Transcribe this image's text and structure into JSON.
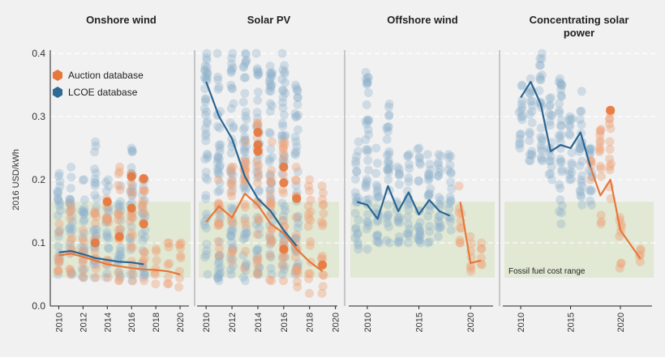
{
  "chart_data": {
    "type": "scatter",
    "ylabel": "2016 USD/kWh",
    "ylim": [
      0,
      0.4
    ],
    "yticks": [
      "0.0",
      "0.1",
      "0.2",
      "0.3",
      "0.4"
    ],
    "fossil_range": {
      "label": "Fossil fuel cost range",
      "low": 0.045,
      "high": 0.165,
      "color": "#dfe7d0"
    },
    "legend": [
      {
        "label": "Auction database",
        "color": "#e8773a"
      },
      {
        "label": "LCOE database",
        "color": "#2f6a94"
      }
    ],
    "colors": {
      "lcoe_dot": "#8eb1cc",
      "auction_dot": "#eda277",
      "lcoe_line": "#2a6592",
      "auction_line": "#e8773a"
    },
    "panels": [
      {
        "title": "Onshore wind",
        "xmin": 2009.3,
        "xmax": 2021.0,
        "xticks": [
          "2010",
          "2012",
          "2014",
          "2016",
          "2018",
          "2020"
        ],
        "lcoe_line": [
          [
            2010,
            0.085
          ],
          [
            2011,
            0.087
          ],
          [
            2012,
            0.082
          ],
          [
            2013,
            0.076
          ],
          [
            2014,
            0.073
          ],
          [
            2015,
            0.07
          ],
          [
            2016,
            0.069
          ],
          [
            2017,
            0.066
          ]
        ],
        "auction_line": [
          [
            2010,
            0.08
          ],
          [
            2011,
            0.083
          ],
          [
            2012,
            0.078
          ],
          [
            2013,
            0.072
          ],
          [
            2014,
            0.066
          ],
          [
            2015,
            0.063
          ],
          [
            2016,
            0.06
          ],
          [
            2017,
            0.058
          ],
          [
            2018,
            0.057
          ],
          [
            2019,
            0.055
          ],
          [
            2020,
            0.05
          ]
        ],
        "lcoe_scatter": [
          [
            2010,
            0.05,
            0.21
          ],
          [
            2011,
            0.05,
            0.22
          ],
          [
            2012,
            0.045,
            0.2
          ],
          [
            2013,
            0.045,
            0.26
          ],
          [
            2014,
            0.045,
            0.2
          ],
          [
            2015,
            0.045,
            0.19
          ],
          [
            2016,
            0.04,
            0.25
          ],
          [
            2017,
            0.045,
            0.2
          ]
        ],
        "auction_scatter": [
          [
            2010,
            0.055,
            0.13
          ],
          [
            2011,
            0.05,
            0.16
          ],
          [
            2012,
            0.045,
            0.12
          ],
          [
            2013,
            0.045,
            0.15
          ],
          [
            2014,
            0.045,
            0.17
          ],
          [
            2015,
            0.04,
            0.22
          ],
          [
            2016,
            0.04,
            0.21
          ],
          [
            2017,
            0.04,
            0.2
          ],
          [
            2018,
            0.035,
            0.09
          ],
          [
            2019,
            0.035,
            0.1
          ],
          [
            2020,
            0.03,
            0.1
          ]
        ],
        "auction_highlights": [
          [
            2016,
            0.205
          ],
          [
            2017,
            0.202
          ],
          [
            2014,
            0.165
          ],
          [
            2016,
            0.155
          ],
          [
            2017,
            0.13
          ],
          [
            2013,
            0.1
          ],
          [
            2015,
            0.11
          ]
        ]
      },
      {
        "title": "Solar PV",
        "xmin": 2009.3,
        "xmax": 2020.4,
        "xticks": [
          "2010",
          "2012",
          "2014",
          "2016",
          "2018",
          "2020"
        ],
        "lcoe_line": [
          [
            2010,
            0.355
          ],
          [
            2011,
            0.3
          ],
          [
            2012,
            0.265
          ],
          [
            2013,
            0.205
          ],
          [
            2014,
            0.17
          ],
          [
            2015,
            0.15
          ],
          [
            2016,
            0.12
          ],
          [
            2017,
            0.095
          ]
        ],
        "auction_line": [
          [
            2010,
            0.133
          ],
          [
            2011,
            0.158
          ],
          [
            2012,
            0.14
          ],
          [
            2013,
            0.178
          ],
          [
            2014,
            0.16
          ],
          [
            2015,
            0.13
          ],
          [
            2016,
            0.115
          ],
          [
            2017,
            0.09
          ],
          [
            2018,
            0.07
          ],
          [
            2019,
            0.055
          ]
        ],
        "lcoe_scatter": [
          [
            2010,
            0.05,
            0.4
          ],
          [
            2011,
            0.04,
            0.4
          ],
          [
            2012,
            0.05,
            0.4
          ],
          [
            2013,
            0.04,
            0.4
          ],
          [
            2014,
            0.05,
            0.4
          ],
          [
            2015,
            0.05,
            0.38
          ],
          [
            2016,
            0.05,
            0.4
          ],
          [
            2017,
            0.05,
            0.35
          ]
        ],
        "auction_scatter": [
          [
            2011,
            0.08,
            0.2
          ],
          [
            2012,
            0.07,
            0.22
          ],
          [
            2013,
            0.06,
            0.26
          ],
          [
            2014,
            0.05,
            0.29
          ],
          [
            2015,
            0.04,
            0.26
          ],
          [
            2016,
            0.04,
            0.26
          ],
          [
            2017,
            0.03,
            0.22
          ],
          [
            2018,
            0.02,
            0.2
          ],
          [
            2019,
            0.02,
            0.19
          ]
        ],
        "auction_highlights": [
          [
            2014,
            0.255
          ],
          [
            2014,
            0.275
          ],
          [
            2014,
            0.245
          ],
          [
            2016,
            0.22
          ],
          [
            2016,
            0.195
          ],
          [
            2017,
            0.17
          ],
          [
            2016,
            0.09
          ],
          [
            2019,
            0.065
          ]
        ]
      },
      {
        "title": "Offshore wind",
        "xmin": 2008.2,
        "xmax": 2022.5,
        "xticks": [
          "2010",
          "2015",
          "2020"
        ],
        "lcoe_line": [
          [
            2009,
            0.165
          ],
          [
            2010,
            0.16
          ],
          [
            2011,
            0.138
          ],
          [
            2012,
            0.19
          ],
          [
            2013,
            0.15
          ],
          [
            2014,
            0.18
          ],
          [
            2015,
            0.145
          ],
          [
            2016,
            0.168
          ],
          [
            2017,
            0.15
          ],
          [
            2018,
            0.143
          ]
        ],
        "auction_line": [
          [
            2019,
            0.165
          ],
          [
            2020,
            0.068
          ],
          [
            2021,
            0.072
          ]
        ],
        "lcoe_scatter": [
          [
            2009,
            0.09,
            0.26
          ],
          [
            2010,
            0.09,
            0.37
          ],
          [
            2011,
            0.1,
            0.25
          ],
          [
            2012,
            0.1,
            0.32
          ],
          [
            2013,
            0.1,
            0.22
          ],
          [
            2014,
            0.1,
            0.24
          ],
          [
            2015,
            0.1,
            0.25
          ],
          [
            2016,
            0.1,
            0.24
          ],
          [
            2017,
            0.11,
            0.24
          ],
          [
            2018,
            0.12,
            0.24
          ]
        ],
        "auction_scatter": [
          [
            2019,
            0.1,
            0.19
          ],
          [
            2020,
            0.055,
            0.11
          ],
          [
            2021,
            0.065,
            0.1
          ]
        ],
        "auction_highlights": []
      },
      {
        "title": "Concentrating solar",
        "title2": "power",
        "xmin": 2008.2,
        "xmax": 2023.5,
        "xticks": [
          "2010",
          "2015",
          "2020"
        ],
        "lcoe_line": [
          [
            2010,
            0.33
          ],
          [
            2011,
            0.355
          ],
          [
            2012,
            0.32
          ],
          [
            2013,
            0.245
          ],
          [
            2014,
            0.255
          ],
          [
            2015,
            0.25
          ],
          [
            2016,
            0.275
          ],
          [
            2017,
            0.22
          ]
        ],
        "auction_line": [
          [
            2017,
            0.22
          ],
          [
            2018,
            0.175
          ],
          [
            2019,
            0.2
          ],
          [
            2020,
            0.12
          ],
          [
            2022,
            0.075
          ]
        ],
        "lcoe_scatter": [
          [
            2010,
            0.25,
            0.35
          ],
          [
            2011,
            0.23,
            0.36
          ],
          [
            2012,
            0.23,
            0.4
          ],
          [
            2013,
            0.2,
            0.33
          ],
          [
            2014,
            0.13,
            0.36
          ],
          [
            2015,
            0.2,
            0.3
          ],
          [
            2016,
            0.16,
            0.34
          ],
          [
            2017,
            0.16,
            0.25
          ]
        ],
        "auction_scatter": [
          [
            2017,
            0.2,
            0.23
          ],
          [
            2018,
            0.13,
            0.28
          ],
          [
            2019,
            0.17,
            0.31
          ],
          [
            2020,
            0.06,
            0.14
          ],
          [
            2022,
            0.07,
            0.09
          ]
        ],
        "auction_highlights": [
          [
            2019,
            0.31
          ]
        ]
      }
    ]
  }
}
